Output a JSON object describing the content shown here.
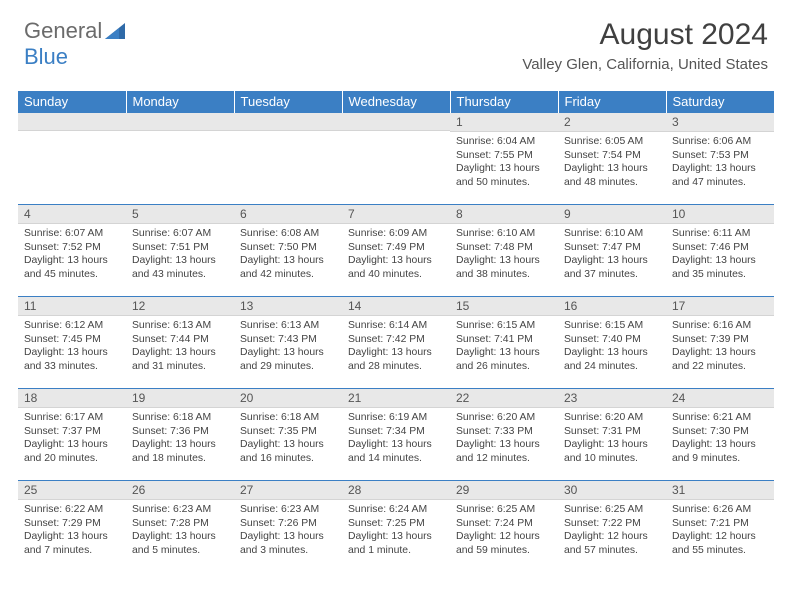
{
  "logo": {
    "text1": "General",
    "text2": "Blue"
  },
  "title": "August 2024",
  "location": "Valley Glen, California, United States",
  "colors": {
    "header_bg": "#3b7fc4",
    "header_text": "#ffffff",
    "daynum_bg": "#e8e8e8",
    "border": "#3b7fc4",
    "text": "#444444"
  },
  "weekdays": [
    "Sunday",
    "Monday",
    "Tuesday",
    "Wednesday",
    "Thursday",
    "Friday",
    "Saturday"
  ],
  "weeks": [
    [
      {
        "n": "",
        "sr": "",
        "ss": "",
        "dl": ""
      },
      {
        "n": "",
        "sr": "",
        "ss": "",
        "dl": ""
      },
      {
        "n": "",
        "sr": "",
        "ss": "",
        "dl": ""
      },
      {
        "n": "",
        "sr": "",
        "ss": "",
        "dl": ""
      },
      {
        "n": "1",
        "sr": "Sunrise: 6:04 AM",
        "ss": "Sunset: 7:55 PM",
        "dl": "Daylight: 13 hours and 50 minutes."
      },
      {
        "n": "2",
        "sr": "Sunrise: 6:05 AM",
        "ss": "Sunset: 7:54 PM",
        "dl": "Daylight: 13 hours and 48 minutes."
      },
      {
        "n": "3",
        "sr": "Sunrise: 6:06 AM",
        "ss": "Sunset: 7:53 PM",
        "dl": "Daylight: 13 hours and 47 minutes."
      }
    ],
    [
      {
        "n": "4",
        "sr": "Sunrise: 6:07 AM",
        "ss": "Sunset: 7:52 PM",
        "dl": "Daylight: 13 hours and 45 minutes."
      },
      {
        "n": "5",
        "sr": "Sunrise: 6:07 AM",
        "ss": "Sunset: 7:51 PM",
        "dl": "Daylight: 13 hours and 43 minutes."
      },
      {
        "n": "6",
        "sr": "Sunrise: 6:08 AM",
        "ss": "Sunset: 7:50 PM",
        "dl": "Daylight: 13 hours and 42 minutes."
      },
      {
        "n": "7",
        "sr": "Sunrise: 6:09 AM",
        "ss": "Sunset: 7:49 PM",
        "dl": "Daylight: 13 hours and 40 minutes."
      },
      {
        "n": "8",
        "sr": "Sunrise: 6:10 AM",
        "ss": "Sunset: 7:48 PM",
        "dl": "Daylight: 13 hours and 38 minutes."
      },
      {
        "n": "9",
        "sr": "Sunrise: 6:10 AM",
        "ss": "Sunset: 7:47 PM",
        "dl": "Daylight: 13 hours and 37 minutes."
      },
      {
        "n": "10",
        "sr": "Sunrise: 6:11 AM",
        "ss": "Sunset: 7:46 PM",
        "dl": "Daylight: 13 hours and 35 minutes."
      }
    ],
    [
      {
        "n": "11",
        "sr": "Sunrise: 6:12 AM",
        "ss": "Sunset: 7:45 PM",
        "dl": "Daylight: 13 hours and 33 minutes."
      },
      {
        "n": "12",
        "sr": "Sunrise: 6:13 AM",
        "ss": "Sunset: 7:44 PM",
        "dl": "Daylight: 13 hours and 31 minutes."
      },
      {
        "n": "13",
        "sr": "Sunrise: 6:13 AM",
        "ss": "Sunset: 7:43 PM",
        "dl": "Daylight: 13 hours and 29 minutes."
      },
      {
        "n": "14",
        "sr": "Sunrise: 6:14 AM",
        "ss": "Sunset: 7:42 PM",
        "dl": "Daylight: 13 hours and 28 minutes."
      },
      {
        "n": "15",
        "sr": "Sunrise: 6:15 AM",
        "ss": "Sunset: 7:41 PM",
        "dl": "Daylight: 13 hours and 26 minutes."
      },
      {
        "n": "16",
        "sr": "Sunrise: 6:15 AM",
        "ss": "Sunset: 7:40 PM",
        "dl": "Daylight: 13 hours and 24 minutes."
      },
      {
        "n": "17",
        "sr": "Sunrise: 6:16 AM",
        "ss": "Sunset: 7:39 PM",
        "dl": "Daylight: 13 hours and 22 minutes."
      }
    ],
    [
      {
        "n": "18",
        "sr": "Sunrise: 6:17 AM",
        "ss": "Sunset: 7:37 PM",
        "dl": "Daylight: 13 hours and 20 minutes."
      },
      {
        "n": "19",
        "sr": "Sunrise: 6:18 AM",
        "ss": "Sunset: 7:36 PM",
        "dl": "Daylight: 13 hours and 18 minutes."
      },
      {
        "n": "20",
        "sr": "Sunrise: 6:18 AM",
        "ss": "Sunset: 7:35 PM",
        "dl": "Daylight: 13 hours and 16 minutes."
      },
      {
        "n": "21",
        "sr": "Sunrise: 6:19 AM",
        "ss": "Sunset: 7:34 PM",
        "dl": "Daylight: 13 hours and 14 minutes."
      },
      {
        "n": "22",
        "sr": "Sunrise: 6:20 AM",
        "ss": "Sunset: 7:33 PM",
        "dl": "Daylight: 13 hours and 12 minutes."
      },
      {
        "n": "23",
        "sr": "Sunrise: 6:20 AM",
        "ss": "Sunset: 7:31 PM",
        "dl": "Daylight: 13 hours and 10 minutes."
      },
      {
        "n": "24",
        "sr": "Sunrise: 6:21 AM",
        "ss": "Sunset: 7:30 PM",
        "dl": "Daylight: 13 hours and 9 minutes."
      }
    ],
    [
      {
        "n": "25",
        "sr": "Sunrise: 6:22 AM",
        "ss": "Sunset: 7:29 PM",
        "dl": "Daylight: 13 hours and 7 minutes."
      },
      {
        "n": "26",
        "sr": "Sunrise: 6:23 AM",
        "ss": "Sunset: 7:28 PM",
        "dl": "Daylight: 13 hours and 5 minutes."
      },
      {
        "n": "27",
        "sr": "Sunrise: 6:23 AM",
        "ss": "Sunset: 7:26 PM",
        "dl": "Daylight: 13 hours and 3 minutes."
      },
      {
        "n": "28",
        "sr": "Sunrise: 6:24 AM",
        "ss": "Sunset: 7:25 PM",
        "dl": "Daylight: 13 hours and 1 minute."
      },
      {
        "n": "29",
        "sr": "Sunrise: 6:25 AM",
        "ss": "Sunset: 7:24 PM",
        "dl": "Daylight: 12 hours and 59 minutes."
      },
      {
        "n": "30",
        "sr": "Sunrise: 6:25 AM",
        "ss": "Sunset: 7:22 PM",
        "dl": "Daylight: 12 hours and 57 minutes."
      },
      {
        "n": "31",
        "sr": "Sunrise: 6:26 AM",
        "ss": "Sunset: 7:21 PM",
        "dl": "Daylight: 12 hours and 55 minutes."
      }
    ]
  ]
}
